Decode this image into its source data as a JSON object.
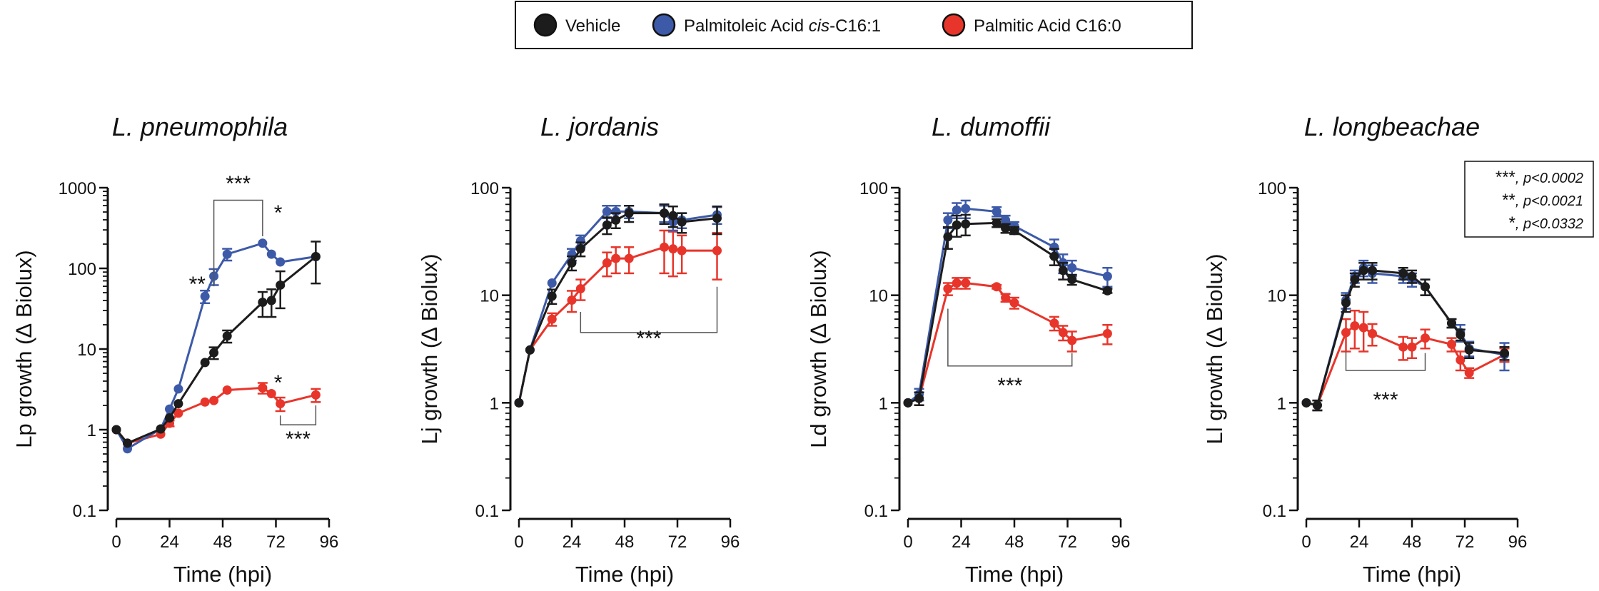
{
  "legend": {
    "entries": [
      {
        "label_parts": [
          "Vehicle"
        ],
        "italic_index": -1,
        "color": "#1c1c1c"
      },
      {
        "label_parts": [
          "Palmitoleic Acid ",
          "cis",
          "-C16:1"
        ],
        "italic_index": 1,
        "color": "#3d5aa8"
      },
      {
        "label_parts": [
          "Palmitic Acid C16:0"
        ],
        "italic_index": -1,
        "color": "#e8352b"
      }
    ]
  },
  "significance_legend": [
    {
      "stars": "***",
      "text": ", p<0.0002"
    },
    {
      "stars": "**",
      "text": ", p<0.0021"
    },
    {
      "stars": "*",
      "text": ", p<0.0332"
    }
  ],
  "colors": {
    "Vehicle": "#1c1c1c",
    "Palmitoleic Acid cis-C16:1": "#3d5aa8",
    "Palmitic Acid C16:0": "#e8352b"
  },
  "chart_data": [
    {
      "type": "line",
      "title": "L. pneumophila",
      "ylabel": "Lp growth (∆ Biolux)",
      "xlabel": "Time (hpi)",
      "yscale": "log",
      "ylim": [
        0.1,
        1000
      ],
      "yticks": [
        0.1,
        1,
        10,
        100,
        1000
      ],
      "ytick_labels": [
        "0.1",
        "1",
        "10",
        "100",
        "1000"
      ],
      "xlim": [
        0,
        96
      ],
      "xticks": [
        0,
        24,
        48,
        72,
        96
      ],
      "series": [
        {
          "name": "Vehicle",
          "x": [
            0,
            5,
            20,
            24,
            28,
            40,
            44,
            50,
            66,
            70,
            74,
            90
          ],
          "y": [
            1,
            0.68,
            1.02,
            1.4,
            2.1,
            6.8,
            9,
            14.5,
            38,
            40,
            62,
            140
          ],
          "err": [
            0,
            0,
            0,
            0,
            0,
            0,
            1.5,
            2.5,
            13,
            15,
            30,
            75
          ]
        },
        {
          "name": "Palmitoleic Acid cis-C16:1",
          "x": [
            0,
            5,
            20,
            24,
            28,
            40,
            44,
            50,
            66,
            70,
            74,
            90
          ],
          "y": [
            1,
            0.58,
            1.02,
            1.8,
            3.2,
            45,
            80,
            150,
            205,
            150,
            120,
            140
          ],
          "err": [
            0,
            0,
            0,
            0,
            0,
            8,
            18,
            25,
            0,
            0,
            0,
            0
          ]
        },
        {
          "name": "Palmitic Acid C16:0",
          "x": [
            0,
            5,
            20,
            24,
            28,
            40,
            44,
            50,
            66,
            70,
            74,
            90
          ],
          "y": [
            1,
            0.68,
            0.88,
            1.2,
            1.6,
            2.2,
            2.3,
            3.1,
            3.3,
            2.8,
            2.1,
            2.7
          ],
          "err": [
            0,
            0,
            0,
            0.1,
            0,
            0,
            0,
            0,
            0.5,
            0,
            0.4,
            0.5
          ]
        }
      ],
      "annotations": [
        "***",
        "**",
        "*",
        "*",
        "***"
      ]
    },
    {
      "type": "line",
      "title": "L. jordanis",
      "ylabel": "Lj growth (∆ Biolux)",
      "xlabel": "Time (hpi)",
      "yscale": "log",
      "ylim": [
        0.1,
        100
      ],
      "yticks": [
        0.1,
        1,
        10,
        100
      ],
      "ytick_labels": [
        "0.1",
        "1",
        "10",
        "100"
      ],
      "xlim": [
        0,
        96
      ],
      "xticks": [
        0,
        24,
        48,
        72,
        96
      ],
      "series": [
        {
          "name": "Vehicle",
          "x": [
            0,
            5,
            15,
            24,
            28,
            40,
            44,
            50,
            66,
            70,
            74,
            90
          ],
          "y": [
            1,
            3.1,
            9.8,
            20,
            27,
            45,
            50,
            58,
            58,
            55,
            48,
            52
          ],
          "err": [
            0,
            0,
            1.5,
            3,
            4,
            8,
            8,
            10,
            12,
            12,
            10,
            15
          ]
        },
        {
          "name": "Palmitoleic Acid cis-C16:1",
          "x": [
            0,
            5,
            15,
            24,
            28,
            40,
            44,
            50,
            66,
            70,
            74,
            90
          ],
          "y": [
            1,
            3.1,
            13,
            24,
            32,
            60,
            60,
            60,
            58,
            48,
            50,
            56
          ],
          "err": [
            0,
            0,
            0,
            3,
            4,
            8,
            8,
            8,
            10,
            8,
            8,
            10
          ]
        },
        {
          "name": "Palmitic Acid C16:0",
          "x": [
            0,
            5,
            15,
            24,
            28,
            40,
            44,
            50,
            66,
            70,
            74,
            90
          ],
          "y": [
            1,
            3.1,
            6,
            9,
            11.5,
            20,
            22,
            22,
            28,
            27,
            26,
            26
          ],
          "err": [
            0,
            0,
            0.8,
            2,
            2.5,
            5,
            6,
            6,
            12,
            12,
            10,
            12
          ]
        }
      ],
      "annotations": [
        "***"
      ]
    },
    {
      "type": "line",
      "title": "L. dumoffii",
      "ylabel": "Ld growth (∆ Biolux)",
      "xlabel": "Time (hpi)",
      "yscale": "log",
      "ylim": [
        0.1,
        100
      ],
      "yticks": [
        0.1,
        1,
        10,
        100
      ],
      "ytick_labels": [
        "0.1",
        "1",
        "10",
        "100"
      ],
      "xlim": [
        0,
        96
      ],
      "xticks": [
        0,
        24,
        48,
        72,
        96
      ],
      "series": [
        {
          "name": "Vehicle",
          "x": [
            0,
            5,
            18,
            22,
            26,
            40,
            44,
            48,
            66,
            70,
            74,
            90
          ],
          "y": [
            1,
            1.1,
            35,
            45,
            46,
            47,
            42,
            40,
            23,
            17,
            14,
            11
          ],
          "err": [
            0,
            0.15,
            8,
            10,
            10,
            4,
            4,
            3,
            4,
            3,
            1.5,
            0.5
          ]
        },
        {
          "name": "Palmitoleic Acid cis-C16:1",
          "x": [
            0,
            5,
            18,
            22,
            26,
            40,
            44,
            48,
            66,
            70,
            74,
            90
          ],
          "y": [
            1,
            1.2,
            50,
            62,
            64,
            60,
            50,
            44,
            28,
            20,
            18,
            15
          ],
          "err": [
            0,
            0.15,
            8,
            10,
            12,
            6,
            5,
            4,
            5,
            4,
            3,
            3
          ]
        },
        {
          "name": "Palmitic Acid C16:0",
          "x": [
            0,
            5,
            18,
            22,
            26,
            40,
            44,
            48,
            66,
            70,
            74,
            90
          ],
          "y": [
            1,
            1.1,
            11.5,
            13,
            13,
            12,
            9.5,
            8.5,
            5.5,
            4.5,
            3.8,
            4.4
          ],
          "err": [
            0,
            0.15,
            1.5,
            1.5,
            1.5,
            0.5,
            0.8,
            1,
            0.8,
            0.7,
            0.8,
            0.9
          ]
        }
      ],
      "annotations": [
        "***"
      ]
    },
    {
      "type": "line",
      "title": "L. longbeachae",
      "ylabel": "Ll growth (∆ Biolux)",
      "xlabel": "Time (hpi)",
      "yscale": "log",
      "ylim": [
        0.1,
        100
      ],
      "yticks": [
        0.1,
        1,
        10,
        100
      ],
      "ytick_labels": [
        "0.1",
        "1",
        "10",
        "100"
      ],
      "xlim": [
        0,
        96
      ],
      "xticks": [
        0,
        24,
        48,
        72,
        96
      ],
      "series": [
        {
          "name": "Vehicle",
          "x": [
            0,
            5,
            18,
            22,
            26,
            30,
            44,
            48,
            54,
            66,
            70,
            74,
            90
          ],
          "y": [
            1,
            0.95,
            8.5,
            14,
            17,
            17,
            16,
            15,
            12,
            5.5,
            4.3,
            3.1,
            2.9
          ],
          "err": [
            0,
            0.1,
            1.5,
            2,
            3,
            3,
            2,
            2,
            2,
            0.5,
            0.5,
            0.5,
            0.4
          ]
        },
        {
          "name": "Palmitoleic Acid cis-C16:1",
          "x": [
            0,
            5,
            18,
            22,
            26,
            30,
            44,
            48,
            54,
            66,
            70,
            74,
            90
          ],
          "y": [
            1,
            0.95,
            9,
            15,
            18,
            16,
            15,
            14,
            12,
            5.5,
            4.5,
            3.2,
            2.8
          ],
          "err": [
            0,
            0.1,
            1.5,
            2,
            3,
            3,
            2,
            2,
            2,
            0.5,
            0.8,
            0.5,
            0.8
          ]
        },
        {
          "name": "Palmitic Acid C16:0",
          "x": [
            0,
            5,
            18,
            22,
            26,
            30,
            44,
            48,
            54,
            66,
            70,
            74,
            90
          ],
          "y": [
            1,
            0.95,
            4.5,
            5.2,
            5,
            4.4,
            3.3,
            3.3,
            4,
            3.5,
            2.5,
            1.9,
            2.8
          ],
          "err": [
            0,
            0.1,
            1.5,
            2,
            2,
            1,
            0.8,
            0.7,
            0.8,
            0.5,
            0.5,
            0.2,
            0.4
          ]
        }
      ],
      "annotations": [
        "***"
      ]
    }
  ]
}
